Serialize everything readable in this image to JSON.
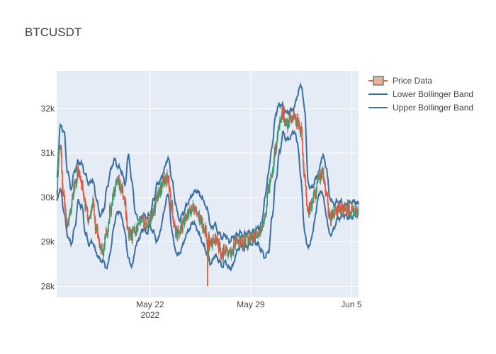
{
  "chart_data": {
    "type": "candlestick",
    "title": "BTCUSDT",
    "x_range": [
      "2022-05-15T12:00",
      "2022-06-05T12:00"
    ],
    "y_range": [
      27750,
      32850
    ],
    "x_ticks": [
      {
        "date": "2022-05-22",
        "label": "May 22",
        "sublabel": "2022"
      },
      {
        "date": "2022-05-29",
        "label": "May 29",
        "sublabel": ""
      },
      {
        "date": "2022-06-05",
        "label": "Jun 5",
        "sublabel": ""
      }
    ],
    "y_ticks": [
      {
        "value": 28000,
        "label": "28k"
      },
      {
        "value": 29000,
        "label": "29k"
      },
      {
        "value": 30000,
        "label": "30k"
      },
      {
        "value": 31000,
        "label": "31k"
      },
      {
        "value": 32000,
        "label": "32k"
      }
    ],
    "increasing_color": "#3D9970",
    "decreasing_color": "#EF553B",
    "band_color": "#3A6FA0",
    "legend": {
      "placement": "right",
      "items": [
        {
          "name": "Price Data",
          "kind": "candle"
        },
        {
          "name": "Lower Bollinger Band",
          "kind": "line"
        },
        {
          "name": "Upper Bollinger Band",
          "kind": "line"
        }
      ]
    },
    "price_path": [
      [
        "2022-05-15T12:00",
        30150
      ],
      [
        "2022-05-15T18:00",
        31250
      ],
      [
        "2022-05-16T00:00",
        30000
      ],
      [
        "2022-05-16T06:00",
        29450
      ],
      [
        "2022-05-16T12:00",
        29700
      ],
      [
        "2022-05-16T18:00",
        30250
      ],
      [
        "2022-05-17T00:00",
        30600
      ],
      [
        "2022-05-17T06:00",
        30300
      ],
      [
        "2022-05-17T12:00",
        29800
      ],
      [
        "2022-05-17T18:00",
        29500
      ],
      [
        "2022-05-18T00:00",
        29900
      ],
      [
        "2022-05-18T06:00",
        29300
      ],
      [
        "2022-05-18T12:00",
        28900
      ],
      [
        "2022-05-18T18:00",
        28800
      ],
      [
        "2022-05-19T00:00",
        29200
      ],
      [
        "2022-05-19T06:00",
        29700
      ],
      [
        "2022-05-19T12:00",
        30100
      ],
      [
        "2022-05-19T18:00",
        30300
      ],
      [
        "2022-05-20T00:00",
        30200
      ],
      [
        "2022-05-20T06:00",
        29900
      ],
      [
        "2022-05-20T12:00",
        29200
      ],
      [
        "2022-05-20T18:00",
        29150
      ],
      [
        "2022-05-21T00:00",
        29300
      ],
      [
        "2022-05-21T06:00",
        29350
      ],
      [
        "2022-05-21T12:00",
        29450
      ],
      [
        "2022-05-21T18:00",
        29400
      ],
      [
        "2022-05-22T00:00",
        29500
      ],
      [
        "2022-05-22T06:00",
        29700
      ],
      [
        "2022-05-22T12:00",
        30050
      ],
      [
        "2022-05-22T18:00",
        30200
      ],
      [
        "2022-05-23T00:00",
        30400
      ],
      [
        "2022-05-23T06:00",
        30450
      ],
      [
        "2022-05-23T12:00",
        29800
      ],
      [
        "2022-05-23T18:00",
        29250
      ],
      [
        "2022-05-24T00:00",
        29200
      ],
      [
        "2022-05-24T06:00",
        29350
      ],
      [
        "2022-05-24T12:00",
        29500
      ],
      [
        "2022-05-24T18:00",
        29650
      ],
      [
        "2022-05-25T00:00",
        29800
      ],
      [
        "2022-05-25T06:00",
        29650
      ],
      [
        "2022-05-25T12:00",
        29500
      ],
      [
        "2022-05-25T18:00",
        29350
      ],
      [
        "2022-05-26T00:00",
        29100
      ],
      [
        "2022-05-26T06:00",
        28900
      ],
      [
        "2022-05-26T12:00",
        29100
      ],
      [
        "2022-05-26T18:00",
        28900
      ],
      [
        "2022-05-27T00:00",
        28750
      ],
      [
        "2022-05-27T06:00",
        28850
      ],
      [
        "2022-05-27T12:00",
        28700
      ],
      [
        "2022-05-27T18:00",
        28800
      ],
      [
        "2022-05-28T00:00",
        29000
      ],
      [
        "2022-05-28T06:00",
        29050
      ],
      [
        "2022-05-28T12:00",
        29000
      ],
      [
        "2022-05-28T18:00",
        29050
      ],
      [
        "2022-05-29T00:00",
        29100
      ],
      [
        "2022-05-29T06:00",
        29150
      ],
      [
        "2022-05-29T12:00",
        29200
      ],
      [
        "2022-05-29T18:00",
        29250
      ],
      [
        "2022-05-30T00:00",
        29600
      ],
      [
        "2022-05-30T06:00",
        30200
      ],
      [
        "2022-05-30T12:00",
        30600
      ],
      [
        "2022-05-30T18:00",
        31100
      ],
      [
        "2022-05-31T00:00",
        31700
      ],
      [
        "2022-05-31T06:00",
        31900
      ],
      [
        "2022-05-31T12:00",
        31650
      ],
      [
        "2022-05-31T18:00",
        31750
      ],
      [
        "2022-06-01T00:00",
        31850
      ],
      [
        "2022-06-01T06:00",
        31700
      ],
      [
        "2022-06-01T12:00",
        31500
      ],
      [
        "2022-06-01T18:00",
        30500
      ],
      [
        "2022-06-02T00:00",
        29700
      ],
      [
        "2022-06-02T06:00",
        29800
      ],
      [
        "2022-06-02T12:00",
        30100
      ],
      [
        "2022-06-02T18:00",
        30400
      ],
      [
        "2022-06-03T00:00",
        30550
      ],
      [
        "2022-06-03T06:00",
        30100
      ],
      [
        "2022-06-03T12:00",
        29550
      ],
      [
        "2022-06-03T18:00",
        29650
      ],
      [
        "2022-06-04T00:00",
        29700
      ],
      [
        "2022-06-04T06:00",
        29750
      ],
      [
        "2022-06-04T12:00",
        29700
      ],
      [
        "2022-06-04T18:00",
        29750
      ],
      [
        "2022-06-05T00:00",
        29700
      ],
      [
        "2022-06-05T06:00",
        29650
      ],
      [
        "2022-06-05T12:00",
        29700
      ]
    ],
    "upper_band": [
      [
        "2022-05-15T12:00",
        30400
      ],
      [
        "2022-05-15T18:00",
        31600
      ],
      [
        "2022-05-16T00:00",
        31500
      ],
      [
        "2022-05-16T06:00",
        30600
      ],
      [
        "2022-05-16T12:00",
        30200
      ],
      [
        "2022-05-16T18:00",
        30600
      ],
      [
        "2022-05-17T00:00",
        30800
      ],
      [
        "2022-05-17T06:00",
        30750
      ],
      [
        "2022-05-17T12:00",
        30500
      ],
      [
        "2022-05-17T18:00",
        30300
      ],
      [
        "2022-05-18T00:00",
        30400
      ],
      [
        "2022-05-18T06:00",
        30000
      ],
      [
        "2022-05-18T12:00",
        29600
      ],
      [
        "2022-05-18T18:00",
        29700
      ],
      [
        "2022-05-19T00:00",
        30200
      ],
      [
        "2022-05-19T06:00",
        30600
      ],
      [
        "2022-05-19T12:00",
        30850
      ],
      [
        "2022-05-19T18:00",
        30700
      ],
      [
        "2022-05-20T00:00",
        30600
      ],
      [
        "2022-05-20T06:00",
        30300
      ],
      [
        "2022-05-20T12:00",
        30950
      ],
      [
        "2022-05-20T18:00",
        30300
      ],
      [
        "2022-05-21T00:00",
        29600
      ],
      [
        "2022-05-21T06:00",
        29500
      ],
      [
        "2022-05-21T12:00",
        29600
      ],
      [
        "2022-05-21T18:00",
        29550
      ],
      [
        "2022-05-22T00:00",
        29600
      ],
      [
        "2022-05-22T06:00",
        29950
      ],
      [
        "2022-05-22T12:00",
        30300
      ],
      [
        "2022-05-22T18:00",
        30400
      ],
      [
        "2022-05-23T00:00",
        30650
      ],
      [
        "2022-05-23T06:00",
        30900
      ],
      [
        "2022-05-23T12:00",
        30450
      ],
      [
        "2022-05-23T18:00",
        29900
      ],
      [
        "2022-05-24T00:00",
        29500
      ],
      [
        "2022-05-24T06:00",
        29600
      ],
      [
        "2022-05-24T12:00",
        29800
      ],
      [
        "2022-05-24T18:00",
        29950
      ],
      [
        "2022-05-25T00:00",
        30100
      ],
      [
        "2022-05-25T06:00",
        30150
      ],
      [
        "2022-05-25T12:00",
        30050
      ],
      [
        "2022-05-25T18:00",
        29900
      ],
      [
        "2022-05-26T00:00",
        29700
      ],
      [
        "2022-05-26T06:00",
        29300
      ],
      [
        "2022-05-26T12:00",
        29400
      ],
      [
        "2022-05-26T18:00",
        29200
      ],
      [
        "2022-05-27T00:00",
        29100
      ],
      [
        "2022-05-27T06:00",
        29150
      ],
      [
        "2022-05-27T12:00",
        29000
      ],
      [
        "2022-05-27T18:00",
        29100
      ],
      [
        "2022-05-28T00:00",
        29150
      ],
      [
        "2022-05-28T06:00",
        29200
      ],
      [
        "2022-05-28T12:00",
        29150
      ],
      [
        "2022-05-28T18:00",
        29200
      ],
      [
        "2022-05-29T00:00",
        29200
      ],
      [
        "2022-05-29T06:00",
        29250
      ],
      [
        "2022-05-29T12:00",
        29300
      ],
      [
        "2022-05-29T18:00",
        29400
      ],
      [
        "2022-05-30T00:00",
        30000
      ],
      [
        "2022-05-30T06:00",
        30600
      ],
      [
        "2022-05-30T12:00",
        31200
      ],
      [
        "2022-05-30T18:00",
        31900
      ],
      [
        "2022-05-31T00:00",
        32100
      ],
      [
        "2022-05-31T06:00",
        32050
      ],
      [
        "2022-05-31T12:00",
        31900
      ],
      [
        "2022-05-31T18:00",
        31950
      ],
      [
        "2022-06-01T00:00",
        32000
      ],
      [
        "2022-06-01T06:00",
        32300
      ],
      [
        "2022-06-01T12:00",
        32550
      ],
      [
        "2022-06-01T18:00",
        32000
      ],
      [
        "2022-06-02T00:00",
        30300
      ],
      [
        "2022-06-02T06:00",
        30200
      ],
      [
        "2022-06-02T12:00",
        30400
      ],
      [
        "2022-06-02T18:00",
        30600
      ],
      [
        "2022-06-03T00:00",
        30950
      ],
      [
        "2022-06-03T06:00",
        30700
      ],
      [
        "2022-06-03T12:00",
        30000
      ],
      [
        "2022-06-03T18:00",
        29850
      ],
      [
        "2022-06-04T00:00",
        29900
      ],
      [
        "2022-06-04T06:00",
        29900
      ],
      [
        "2022-06-04T12:00",
        29800
      ],
      [
        "2022-06-04T18:00",
        29850
      ],
      [
        "2022-06-05T00:00",
        29900
      ],
      [
        "2022-06-05T06:00",
        29900
      ],
      [
        "2022-06-05T12:00",
        29850
      ]
    ],
    "lower_band": [
      [
        "2022-05-15T12:00",
        29900
      ],
      [
        "2022-05-15T18:00",
        30200
      ],
      [
        "2022-05-16T00:00",
        29700
      ],
      [
        "2022-05-16T06:00",
        29150
      ],
      [
        "2022-05-16T12:00",
        28950
      ],
      [
        "2022-05-16T18:00",
        29300
      ],
      [
        "2022-05-17T00:00",
        29900
      ],
      [
        "2022-05-17T06:00",
        29800
      ],
      [
        "2022-05-17T12:00",
        29200
      ],
      [
        "2022-05-17T18:00",
        28950
      ],
      [
        "2022-05-18T00:00",
        29000
      ],
      [
        "2022-05-18T06:00",
        28750
      ],
      [
        "2022-05-18T12:00",
        28600
      ],
      [
        "2022-05-18T18:00",
        28550
      ],
      [
        "2022-05-19T00:00",
        28400
      ],
      [
        "2022-05-19T06:00",
        28800
      ],
      [
        "2022-05-19T12:00",
        29400
      ],
      [
        "2022-05-19T18:00",
        29700
      ],
      [
        "2022-05-20T00:00",
        29600
      ],
      [
        "2022-05-20T06:00",
        29200
      ],
      [
        "2022-05-20T12:00",
        28600
      ],
      [
        "2022-05-20T18:00",
        28450
      ],
      [
        "2022-05-21T00:00",
        28900
      ],
      [
        "2022-05-21T06:00",
        29100
      ],
      [
        "2022-05-21T12:00",
        29300
      ],
      [
        "2022-05-21T18:00",
        29200
      ],
      [
        "2022-05-22T00:00",
        29350
      ],
      [
        "2022-05-22T06:00",
        29200
      ],
      [
        "2022-05-22T12:00",
        29000
      ],
      [
        "2022-05-22T18:00",
        29300
      ],
      [
        "2022-05-23T00:00",
        29750
      ],
      [
        "2022-05-23T06:00",
        30100
      ],
      [
        "2022-05-23T12:00",
        29300
      ],
      [
        "2022-05-23T18:00",
        28800
      ],
      [
        "2022-05-24T00:00",
        28700
      ],
      [
        "2022-05-24T06:00",
        28900
      ],
      [
        "2022-05-24T12:00",
        29150
      ],
      [
        "2022-05-24T18:00",
        29300
      ],
      [
        "2022-05-25T00:00",
        29450
      ],
      [
        "2022-05-25T06:00",
        29300
      ],
      [
        "2022-05-25T12:00",
        29100
      ],
      [
        "2022-05-25T18:00",
        28900
      ],
      [
        "2022-05-26T00:00",
        28700
      ],
      [
        "2022-05-26T06:00",
        28500
      ],
      [
        "2022-05-26T12:00",
        28700
      ],
      [
        "2022-05-26T18:00",
        28600
      ],
      [
        "2022-05-27T00:00",
        28450
      ],
      [
        "2022-05-27T06:00",
        28550
      ],
      [
        "2022-05-27T12:00",
        28400
      ],
      [
        "2022-05-27T18:00",
        28450
      ],
      [
        "2022-05-28T00:00",
        28750
      ],
      [
        "2022-05-28T06:00",
        28900
      ],
      [
        "2022-05-28T12:00",
        28850
      ],
      [
        "2022-05-28T18:00",
        28900
      ],
      [
        "2022-05-29T00:00",
        28950
      ],
      [
        "2022-05-29T06:00",
        29000
      ],
      [
        "2022-05-29T12:00",
        28950
      ],
      [
        "2022-05-29T18:00",
        28800
      ],
      [
        "2022-05-30T00:00",
        28650
      ],
      [
        "2022-05-30T06:00",
        28800
      ],
      [
        "2022-05-30T12:00",
        29600
      ],
      [
        "2022-05-30T18:00",
        30400
      ],
      [
        "2022-05-31T00:00",
        31000
      ],
      [
        "2022-05-31T06:00",
        31450
      ],
      [
        "2022-05-31T12:00",
        31300
      ],
      [
        "2022-05-31T18:00",
        31350
      ],
      [
        "2022-06-01T00:00",
        31500
      ],
      [
        "2022-06-01T06:00",
        31250
      ],
      [
        "2022-06-01T12:00",
        30400
      ],
      [
        "2022-06-01T18:00",
        29200
      ],
      [
        "2022-06-02T00:00",
        28850
      ],
      [
        "2022-06-02T06:00",
        29100
      ],
      [
        "2022-06-02T12:00",
        29600
      ],
      [
        "2022-06-02T18:00",
        30100
      ],
      [
        "2022-06-03T00:00",
        30100
      ],
      [
        "2022-06-03T06:00",
        29600
      ],
      [
        "2022-06-03T12:00",
        29150
      ],
      [
        "2022-06-03T18:00",
        29250
      ],
      [
        "2022-06-04T00:00",
        29500
      ],
      [
        "2022-06-04T06:00",
        29550
      ],
      [
        "2022-06-04T12:00",
        29600
      ],
      [
        "2022-06-04T18:00",
        29550
      ],
      [
        "2022-06-05T00:00",
        29550
      ],
      [
        "2022-06-05T06:00",
        29600
      ],
      [
        "2022-06-05T12:00",
        29600
      ]
    ],
    "special_candles": [
      {
        "time": "2022-05-26T00:00",
        "open": 28950,
        "high": 29050,
        "low": 28000,
        "close": 28650
      }
    ]
  }
}
